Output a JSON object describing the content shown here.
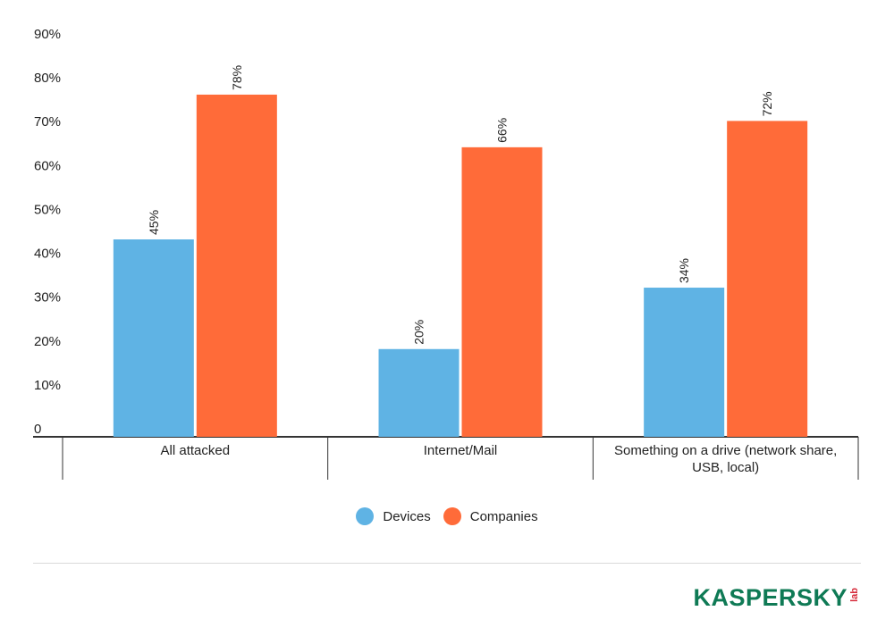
{
  "chart_data": {
    "type": "bar",
    "categories": [
      "All attacked",
      "Internet/Mail",
      "Something on a drive (network share, USB, local)"
    ],
    "category_lines": [
      [
        "All attacked"
      ],
      [
        "Internet/Mail"
      ],
      [
        "Something on a drive (network share,",
        "USB, local)"
      ]
    ],
    "series": [
      {
        "name": "Devices",
        "values": [
          45,
          20,
          34
        ],
        "labels": [
          "45%",
          "20%",
          "34%"
        ],
        "color": "#5fb3e4"
      },
      {
        "name": "Companies",
        "values": [
          78,
          66,
          72
        ],
        "labels": [
          "78%",
          "66%",
          "72%"
        ],
        "color": "#ff6b39"
      }
    ],
    "y_ticks": [
      {
        "value": 0,
        "label": "0"
      },
      {
        "value": 10,
        "label": "10%"
      },
      {
        "value": 20,
        "label": "20%"
      },
      {
        "value": 30,
        "label": "30%"
      },
      {
        "value": 40,
        "label": "40%"
      },
      {
        "value": 50,
        "label": "50%"
      },
      {
        "value": 60,
        "label": "60%"
      },
      {
        "value": 70,
        "label": "70%"
      },
      {
        "value": 80,
        "label": "80%"
      },
      {
        "value": 90,
        "label": "90%"
      }
    ],
    "ylim": [
      0,
      90
    ],
    "grid": false,
    "legend_position": "bottom-center",
    "title": "",
    "xlabel": "",
    "ylabel": ""
  },
  "brand": {
    "word": "KASPERSKY",
    "suffix": "lab",
    "color": "#0f7a55",
    "suffix_color": "#d62a3a"
  }
}
